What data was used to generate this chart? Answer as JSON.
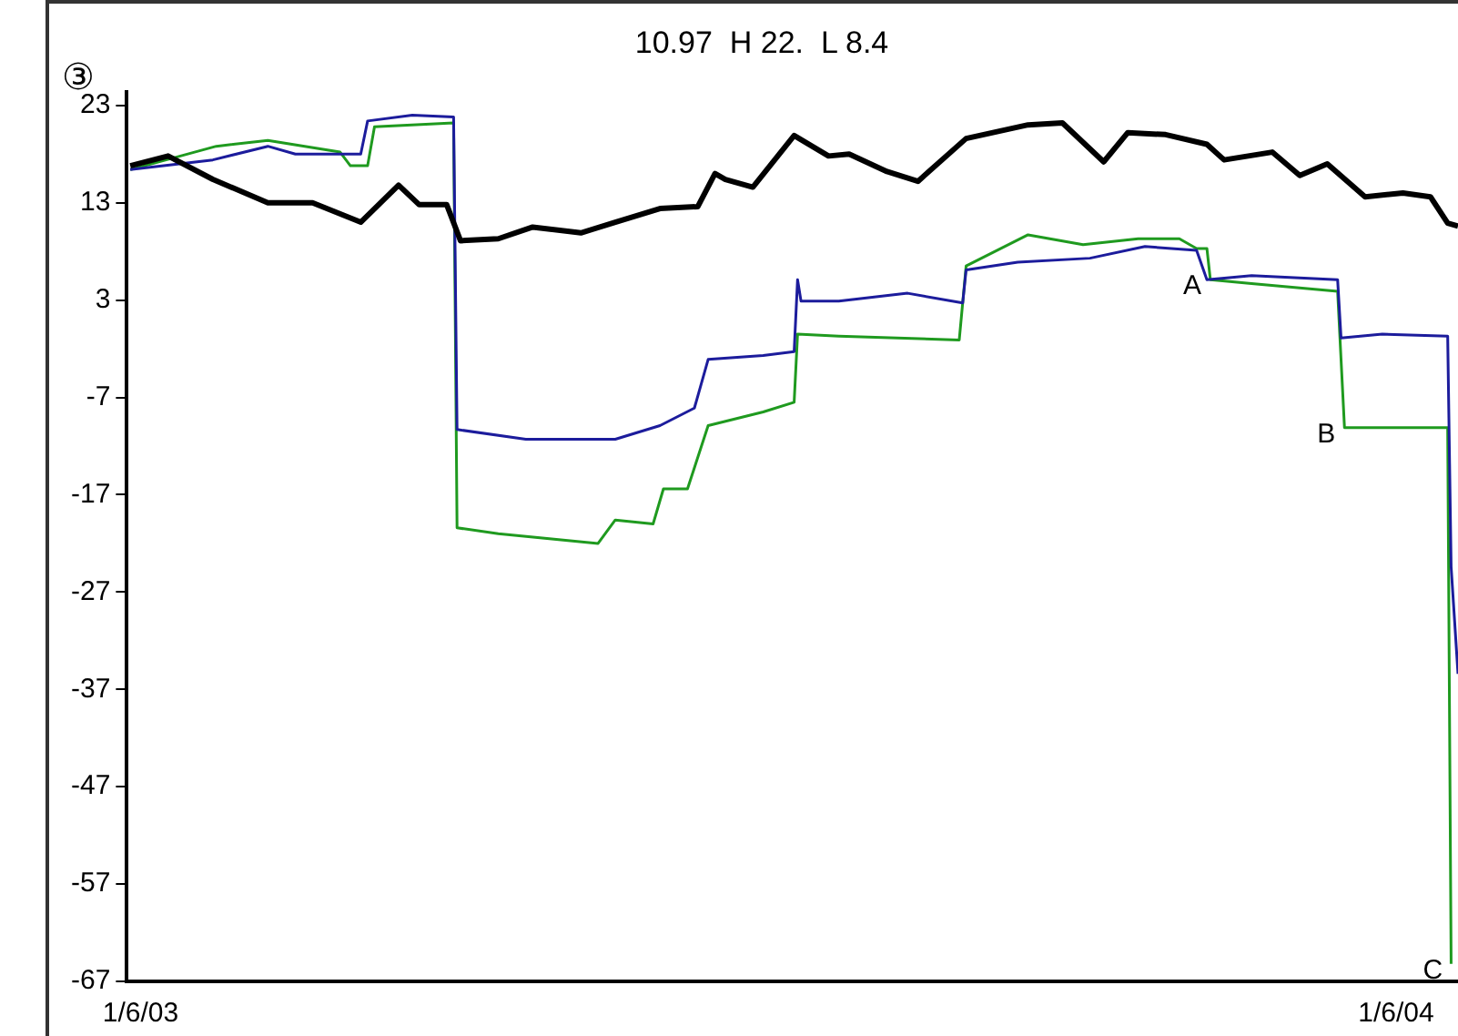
{
  "chart_data": {
    "type": "line",
    "title": "10.97  H 22.  L 8.4",
    "xlim": [
      "2003-01-02",
      "2004-01-24"
    ],
    "xticks": [
      {
        "value": "2003-01-06",
        "label": "1/6/03"
      },
      {
        "value": "2004-01-06",
        "label": "1/6/04"
      }
    ],
    "ylim": [
      -67,
      24.4
    ],
    "yticks": [
      23,
      13,
      3,
      -7,
      -17,
      -27,
      -37,
      -47,
      -57,
      -67
    ],
    "grid": false,
    "legend": false,
    "line_style": "solid",
    "marker": "none",
    "annotations": [
      "③",
      {
        "text": "A",
        "x": "2003-11-13",
        "y": 5.1
      },
      {
        "text": "B",
        "x": "2003-12-22",
        "y": -10.1
      },
      {
        "text": "C",
        "x": "2004-01-22",
        "y": -65.2
      }
    ],
    "series": [
      {
        "color": "#000000",
        "x": [
          "2003-01-03",
          "2003-01-14",
          "2003-01-27",
          "2003-02-12",
          "2003-02-25",
          "2003-03-11",
          "2003-03-22",
          "2003-03-28",
          "2003-04-05",
          "2003-04-09",
          "2003-04-20",
          "2003-04-30",
          "2003-05-14",
          "2003-05-24",
          "2003-06-06",
          "2003-06-17",
          "2003-06-22",
          "2003-06-25",
          "2003-07-03",
          "2003-07-15",
          "2003-07-25",
          "2003-07-31",
          "2003-08-11",
          "2003-08-20",
          "2003-09-03",
          "2003-09-21",
          "2003-10-01",
          "2003-10-13",
          "2003-10-20",
          "2003-10-31",
          "2003-11-12",
          "2003-11-17",
          "2003-12-01",
          "2003-12-09",
          "2003-12-17",
          "2003-12-28",
          "2004-01-08",
          "2004-01-16",
          "2004-01-21",
          "2004-01-24"
        ],
        "values": [
          16.8,
          17.8,
          15.4,
          13,
          13,
          11,
          14.8,
          12.8,
          12.8,
          9.1,
          9.3,
          10.5,
          9.9,
          11,
          12.4,
          12.6,
          16,
          15.4,
          14.6,
          19.9,
          17.8,
          18,
          16.2,
          15.2,
          19.6,
          21,
          21.2,
          17.2,
          20.2,
          20,
          19,
          17.4,
          18.2,
          15.8,
          17,
          13.6,
          14,
          13.6,
          10.9,
          10.6
        ]
      },
      {
        "color": "#1c1c9c",
        "x": [
          "2003-01-03",
          "2003-01-27",
          "2003-02-12",
          "2003-02-20",
          "2003-03-11",
          "2003-03-13",
          "2003-03-26",
          "2003-04-07",
          "2003-04-08",
          "2003-04-28",
          "2003-05-24",
          "2003-06-06",
          "2003-06-16",
          "2003-06-20",
          "2003-07-06",
          "2003-07-15",
          "2003-07-16",
          "2003-07-17",
          "2003-07-28",
          "2003-08-17",
          "2003-09-02",
          "2003-09-03",
          "2003-09-18",
          "2003-10-09",
          "2003-10-25",
          "2003-11-09",
          "2003-11-12",
          "2003-11-25",
          "2003-12-20",
          "2003-12-21",
          "2004-01-02",
          "2004-01-21",
          "2004-01-22",
          "2004-01-24"
        ],
        "values": [
          16.4,
          17.4,
          18.8,
          18,
          18,
          21.4,
          22,
          21.8,
          -10.3,
          -11.3,
          -11.3,
          -9.9,
          -8.1,
          -3.1,
          -2.7,
          -2.3,
          5.1,
          2.9,
          2.9,
          3.7,
          2.7,
          6.1,
          6.9,
          7.3,
          8.5,
          8.1,
          5.1,
          5.5,
          5.1,
          -0.9,
          -0.5,
          -0.7,
          -24.4,
          -35.4
        ]
      },
      {
        "color": "#1f9a1f",
        "x": [
          "2003-01-03",
          "2003-01-28",
          "2003-02-12",
          "2003-03-05",
          "2003-03-08",
          "2003-03-13",
          "2003-03-15",
          "2003-04-07",
          "2003-04-08",
          "2003-04-20",
          "2003-05-19",
          "2003-05-24",
          "2003-06-04",
          "2003-06-07",
          "2003-06-14",
          "2003-06-20",
          "2003-07-06",
          "2003-07-15",
          "2003-07-16",
          "2003-07-28",
          "2003-09-01",
          "2003-09-03",
          "2003-09-21",
          "2003-10-07",
          "2003-10-23",
          "2003-11-04",
          "2003-11-09",
          "2003-11-12",
          "2003-11-13",
          "2003-11-25",
          "2003-12-20",
          "2003-12-22",
          "2004-01-02",
          "2004-01-21",
          "2004-01-22"
        ],
        "values": [
          16.4,
          18.8,
          19.4,
          18.2,
          16.8,
          16.8,
          20.8,
          21.2,
          -20.4,
          -21,
          -22,
          -19.6,
          -20,
          -16.4,
          -16.4,
          -9.9,
          -8.5,
          -7.5,
          -0.5,
          -0.7,
          -1.1,
          6.5,
          9.7,
          8.7,
          9.3,
          9.3,
          8.3,
          8.3,
          5.1,
          4.7,
          3.9,
          -10.1,
          -10.1,
          -10.1,
          -65.2
        ]
      }
    ]
  }
}
